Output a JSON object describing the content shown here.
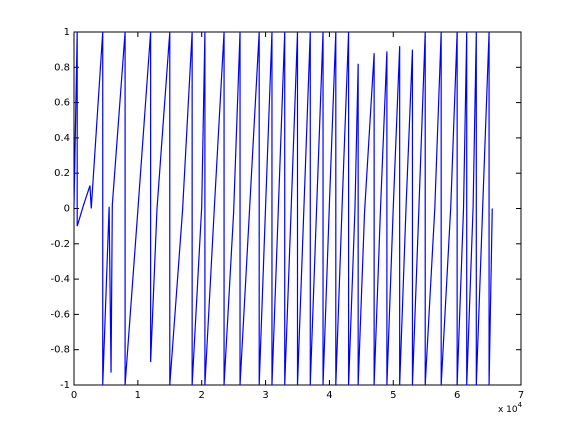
{
  "chart_data": {
    "type": "line",
    "x_multiplier": {
      "base": "x 10",
      "exponent": "4"
    },
    "xlim": [
      0,
      7
    ],
    "xticks": [
      0,
      1,
      2,
      3,
      4,
      5,
      6,
      7
    ],
    "ylim": [
      -1,
      1
    ],
    "yticks": [
      -1,
      -0.8,
      -0.6,
      -0.4,
      -0.2,
      0,
      0.2,
      0.4,
      0.6,
      0.8,
      1
    ],
    "series": [
      {
        "color": "#0000ff",
        "x": [
          0,
          0.05,
          0.05,
          0.15,
          0.25,
          0.27,
          0.45,
          0.45,
          0.55,
          0.58,
          0.6,
          0.8,
          0.8,
          1.0,
          1.2,
          1.2,
          1.3,
          1.5,
          1.5,
          1.7,
          1.85,
          1.85,
          2.0,
          2.05,
          2.05,
          2.2,
          2.35,
          2.35,
          2.5,
          2.6,
          2.6,
          2.75,
          2.9,
          2.9,
          3.0,
          3.1,
          3.1,
          3.2,
          3.3,
          3.3,
          3.4,
          3.5,
          3.5,
          3.6,
          3.7,
          3.7,
          3.8,
          3.9,
          3.9,
          4.0,
          4.1,
          4.1,
          4.2,
          4.3,
          4.3,
          4.4,
          4.45,
          4.45,
          4.55,
          4.7,
          4.7,
          4.8,
          4.9,
          4.9,
          5.0,
          5.1,
          5.1,
          5.2,
          5.3,
          5.3,
          5.4,
          5.5,
          5.5,
          5.65,
          5.75,
          5.75,
          5.9,
          6.0,
          6.0,
          6.1,
          6.15,
          6.15,
          6.25,
          6.3,
          6.3,
          6.4,
          6.5,
          6.5,
          6.55
        ],
        "values": [
          0.01,
          1,
          -0.1,
          0.02,
          0.13,
          0.0,
          1,
          -1,
          0.01,
          -0.93,
          0.02,
          1,
          -1,
          -0.01,
          1,
          -0.87,
          0.0,
          1,
          -1,
          -0.01,
          1,
          -1,
          0.01,
          1,
          -1,
          0.02,
          1,
          -1,
          -0.02,
          1,
          -1,
          0.0,
          1,
          -1,
          0.01,
          1,
          -1,
          0.0,
          1,
          -1,
          -0.01,
          1,
          -1,
          0.0,
          1,
          -1,
          0.01,
          1,
          -1,
          0.03,
          1,
          -1,
          0.03,
          1,
          -1,
          0.0,
          0.82,
          -1,
          -0.02,
          0.88,
          -1,
          0.0,
          0.89,
          -1,
          0.01,
          0.92,
          -1,
          0.01,
          0.9,
          -1,
          -0.01,
          1,
          -1,
          0.0,
          1,
          -1,
          0.01,
          1,
          -1,
          0.0,
          1,
          -1,
          0.01,
          1,
          -1,
          0.01,
          1,
          -1,
          0.0
        ]
      }
    ]
  }
}
